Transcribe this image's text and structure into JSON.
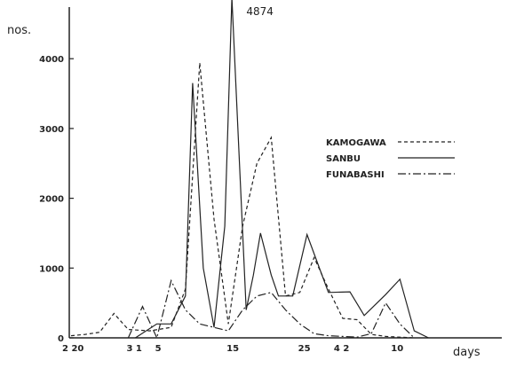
{
  "chart_data": {
    "type": "line",
    "title": "",
    "ylabel": "nos.",
    "xlabel": "days",
    "ylim": [
      0,
      4874
    ],
    "grid": false,
    "legend_placement": "right",
    "yticks": [
      0,
      1000,
      2000,
      3000,
      4000
    ],
    "xtick_labels": [
      {
        "x": 0,
        "label": "2 20"
      },
      {
        "x": 9,
        "label": "3 1"
      },
      {
        "x": 13,
        "label": "5"
      },
      {
        "x": 23,
        "label": "15"
      },
      {
        "x": 33,
        "label": "25"
      },
      {
        "x": 38,
        "label": "4 2"
      },
      {
        "x": 46,
        "label": "10"
      }
    ],
    "annotations": [
      {
        "text": "4874",
        "x": 26.5,
        "y": 4874
      }
    ],
    "series": [
      {
        "name": "KAMOGAWA",
        "style": "dashed",
        "x": [
          0,
          2,
          4,
          6,
          8,
          11,
          14,
          16,
          18,
          20,
          22,
          24,
          26,
          28,
          30,
          32,
          34,
          36,
          38,
          40,
          42,
          44,
          46,
          48
        ],
        "y": [
          30,
          50,
          80,
          350,
          120,
          100,
          150,
          700,
          3940,
          1700,
          200,
          1600,
          2500,
          2870,
          600,
          650,
          1150,
          700,
          280,
          260,
          50,
          20,
          10,
          0
        ]
      },
      {
        "name": "SANBU",
        "style": "solid",
        "x": [
          9,
          12,
          14,
          16,
          17,
          18.5,
          20,
          21.5,
          22.5,
          24.5,
          25.5,
          26.5,
          28,
          29,
          31,
          33,
          36,
          39,
          41,
          44,
          46,
          48,
          50
        ],
        "y": [
          0,
          200,
          200,
          600,
          3650,
          1000,
          150,
          1600,
          4874,
          400,
          900,
          1500,
          900,
          600,
          600,
          1480,
          650,
          660,
          320,
          620,
          840,
          100,
          0
        ]
      },
      {
        "name": "FUNABASHI",
        "style": "dash-dot",
        "x": [
          8,
          10,
          12,
          14,
          16,
          18,
          20,
          22,
          24,
          26,
          28,
          30,
          32,
          34,
          36,
          38,
          40,
          42,
          44,
          46,
          48
        ],
        "y": [
          0,
          450,
          0,
          820,
          400,
          200,
          150,
          100,
          400,
          600,
          650,
          400,
          200,
          60,
          30,
          20,
          10,
          60,
          500,
          200,
          0
        ]
      }
    ]
  }
}
